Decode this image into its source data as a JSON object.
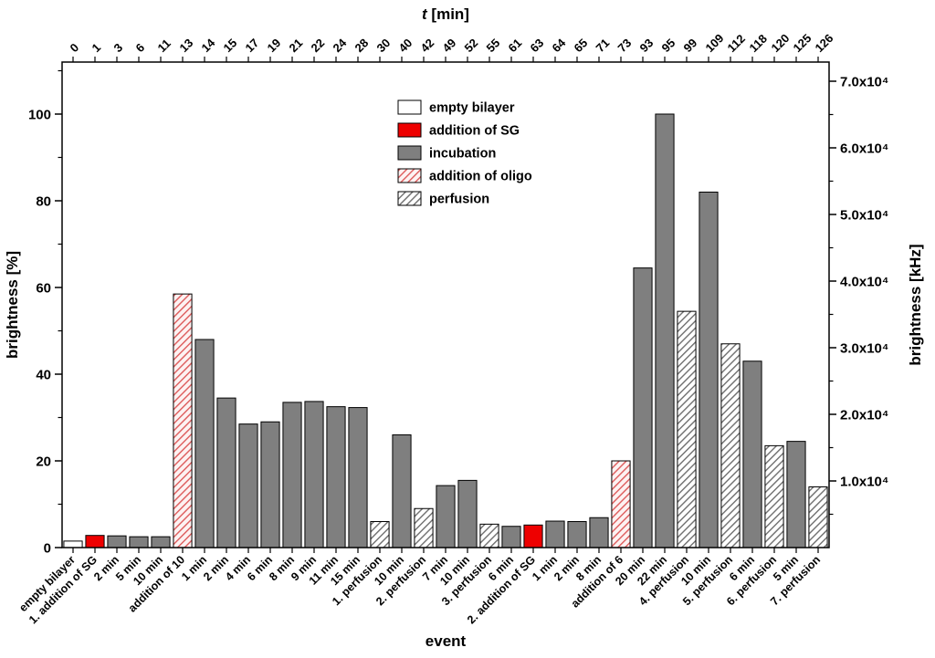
{
  "figure": {
    "background": "#ffffff"
  },
  "colors": {
    "bar_border": "#000000",
    "axis": "#000000",
    "empty_bilayer_fill": "#ffffff",
    "sg_red": "#ee0000",
    "incubation_gray": "#7f7f7f",
    "oligo_hatch_bg": "#fdf2f2",
    "oligo_hatch_line": "#dd5a5a",
    "perfusion_hatch_bg": "#ffffff",
    "perfusion_hatch_line": "#6e6e6e"
  },
  "legend": {
    "items": [
      {
        "label": "empty bilayer",
        "type": "empty"
      },
      {
        "label": "addition of SG",
        "type": "sg"
      },
      {
        "label": "incubation",
        "type": "incubation"
      },
      {
        "label": "addition of oligo",
        "type": "oligo"
      },
      {
        "label": "perfusion",
        "type": "perfusion"
      }
    ]
  },
  "chart_data": {
    "type": "bar",
    "xlabel": "event",
    "ylabel_left": "brightness [%]",
    "ylabel_right": "brightness [kHz]",
    "ylim_left_percent": [
      0,
      112
    ],
    "ylim_right_kHz": [
      0,
      73000
    ],
    "grid": false,
    "legend_position": "upper-center",
    "left_tick_values": [
      0,
      20,
      40,
      60,
      80,
      100
    ],
    "left_tick_labels": [
      "0",
      "20",
      "40",
      "60",
      "80",
      "100"
    ],
    "right_tick_values_kHz": [
      10000,
      20000,
      30000,
      40000,
      50000,
      60000,
      70000
    ],
    "right_tick_labels": [
      "1.0x10⁴",
      "2.0x10⁴",
      "3.0x10⁴",
      "4.0x10⁴",
      "5.0x10⁴",
      "6.0x10⁴",
      "7.0x10⁴"
    ],
    "top_axis": {
      "label_italic": "t",
      "label_rest": " [min]",
      "tick_labels": [
        "0",
        "1",
        "3",
        "6",
        "11",
        "13",
        "14",
        "15",
        "17",
        "19",
        "21",
        "22",
        "24",
        "28",
        "30",
        "40",
        "42",
        "49",
        "52",
        "55",
        "61",
        "63",
        "64",
        "65",
        "71",
        "73",
        "93",
        "95",
        "99",
        "109",
        "112",
        "118",
        "120",
        "125",
        "126"
      ]
    },
    "categories": [
      "empty bilayer",
      "1. addition of SG",
      "2 min",
      "5 min",
      "10 min",
      "addition of 10",
      "1 min",
      "2 min",
      "4 min",
      "6 min",
      "8 min",
      "9 min",
      "11 min",
      "15 min",
      "1. perfusion",
      "10 min",
      "2. perfusion",
      "7 min",
      "10 min",
      "3. perfusion",
      "6 min",
      "2. addition of SG",
      "1 min",
      "2 min",
      "8 min",
      "addition of 6",
      "20 min",
      "22 min",
      "4. perfusion",
      "10 min",
      "5. perfusion",
      "6 min",
      "6. perfusion",
      "5 min",
      "7. perfusion"
    ],
    "values_percent": [
      1.5,
      2.8,
      2.7,
      2.5,
      2.5,
      58.5,
      48,
      34.5,
      28.5,
      29,
      33.5,
      33.7,
      32.5,
      32.3,
      6,
      26,
      9,
      14.3,
      15.5,
      5.4,
      4.9,
      5.2,
      6.1,
      6,
      6.9,
      20,
      64.5,
      100,
      54.5,
      82,
      47,
      43,
      23.5,
      24.5,
      14
    ],
    "bar_types": [
      "empty",
      "sg",
      "incubation",
      "incubation",
      "incubation",
      "oligo",
      "incubation",
      "incubation",
      "incubation",
      "incubation",
      "incubation",
      "incubation",
      "incubation",
      "incubation",
      "perfusion",
      "incubation",
      "perfusion",
      "incubation",
      "incubation",
      "perfusion",
      "incubation",
      "sg",
      "incubation",
      "incubation",
      "incubation",
      "oligo",
      "incubation",
      "incubation",
      "perfusion",
      "incubation",
      "perfusion",
      "incubation",
      "perfusion",
      "incubation",
      "perfusion"
    ]
  }
}
